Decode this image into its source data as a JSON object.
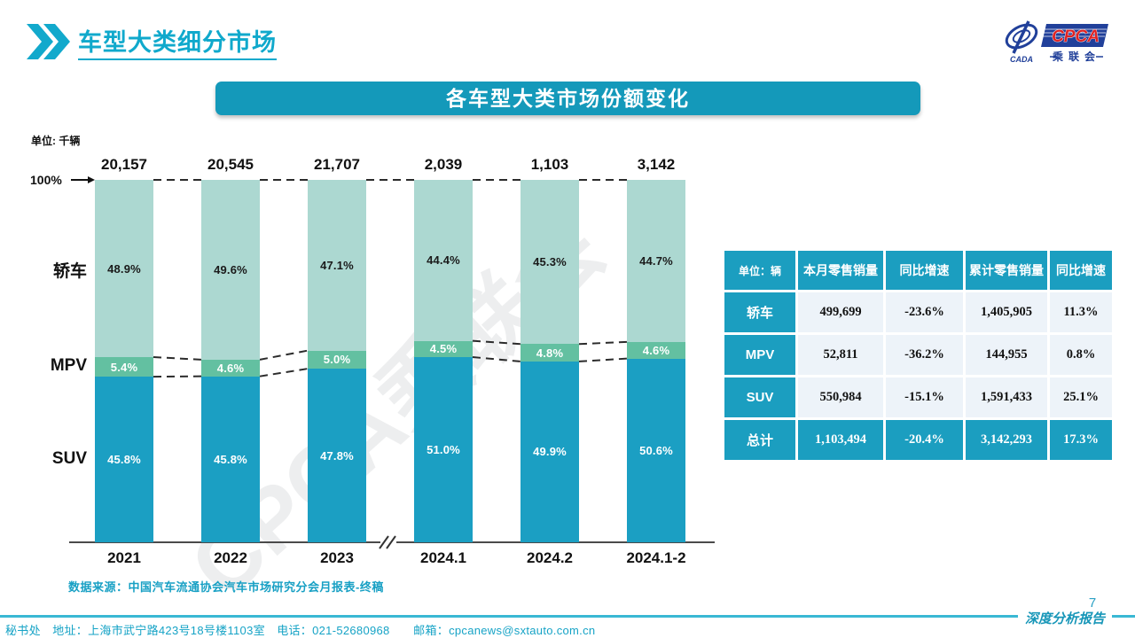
{
  "header": {
    "title": "车型大类细分市场"
  },
  "logo": {
    "cpca": "CPCA",
    "sub": "乘联会",
    "cada": "CADA"
  },
  "banner": {
    "title": "各车型大类市场份额变化"
  },
  "watermark": "CPCA乘联会",
  "chart_data": {
    "type": "bar",
    "stacked": true,
    "unit_label": "单位: 千辆",
    "axis_100_label": "100%",
    "categories": [
      "2021",
      "2022",
      "2023",
      "2024.1",
      "2024.2",
      "2024.1-2"
    ],
    "totals": [
      "20,157",
      "20,545",
      "21,707",
      "2,039",
      "1,103",
      "3,142"
    ],
    "series": [
      {
        "name": "轿车",
        "values": [
          48.9,
          49.6,
          47.1,
          44.4,
          45.3,
          44.7
        ],
        "color": "#acd8d1",
        "label_color": "#1a1a1a"
      },
      {
        "name": "MPV",
        "values": [
          5.4,
          4.6,
          5.0,
          4.5,
          4.8,
          4.6
        ],
        "color": "#63c0a1",
        "label_color": "#ffffff"
      },
      {
        "name": "SUV",
        "values": [
          45.8,
          45.8,
          47.8,
          51.0,
          49.9,
          50.6
        ],
        "color": "#1b9fc3",
        "label_color": "#ffffff"
      }
    ],
    "ylim": [
      0,
      100
    ],
    "axis_break_after_index": 2,
    "legend_position": "left-of-bars",
    "grid": false
  },
  "table": {
    "headers": [
      "单位：辆",
      "本月零售销量",
      "同比增速",
      "累计零售销量",
      "同比增速"
    ],
    "rows": [
      {
        "label": "轿车",
        "cells": [
          "499,699",
          "-23.6%",
          "1,405,905",
          "11.3%"
        ],
        "highlight": false
      },
      {
        "label": "MPV",
        "cells": [
          "52,811",
          "-36.2%",
          "144,955",
          "0.8%"
        ],
        "highlight": false
      },
      {
        "label": "SUV",
        "cells": [
          "550,984",
          "-15.1%",
          "1,591,433",
          "25.1%"
        ],
        "highlight": false
      },
      {
        "label": "总计",
        "cells": [
          "1,103,494",
          "-20.4%",
          "3,142,293",
          "17.3%"
        ],
        "highlight": true
      }
    ]
  },
  "source_note": "数据来源：中国汽车流通协会汽车市场研究分会月报表-终稿",
  "footer": {
    "contact": "秘书处　地址：上海市武宁路423号18号楼1103室　电话：021-52680968　　邮箱：cpcanews@sxtauto.com.cn",
    "report_label": "深度分析报告",
    "page_number": "7"
  }
}
